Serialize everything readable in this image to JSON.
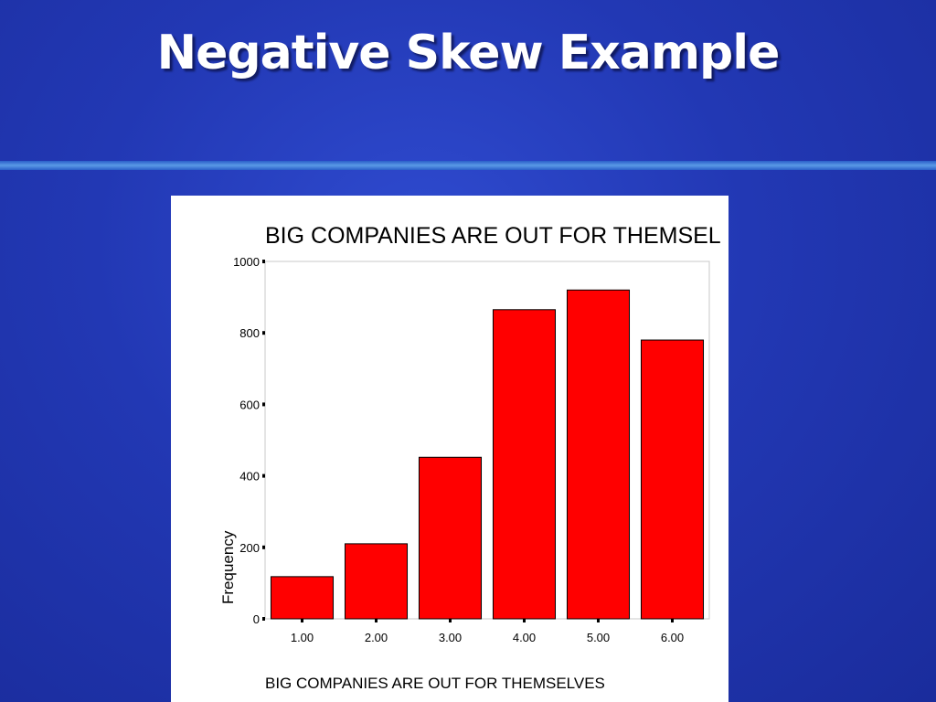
{
  "slide": {
    "title": "Negative Skew Example"
  },
  "colors": {
    "background": "#2238b4",
    "bar_fill": "#ff0000",
    "title_text": "#ffffff"
  },
  "chart_data": {
    "type": "bar",
    "title": "BIG COMPANIES ARE OUT FOR THEMSEL",
    "categories": [
      "1.00",
      "2.00",
      "3.00",
      "4.00",
      "5.00",
      "6.00"
    ],
    "values": [
      118,
      210,
      452,
      865,
      920,
      780
    ],
    "xlabel": "BIG COMPANIES ARE OUT FOR THEMSELVES",
    "ylabel": "Frequency",
    "ylim": [
      0,
      1000
    ],
    "yticks": [
      "0",
      "200",
      "400",
      "600",
      "800",
      "1000"
    ],
    "grid": false,
    "legend": "none"
  }
}
